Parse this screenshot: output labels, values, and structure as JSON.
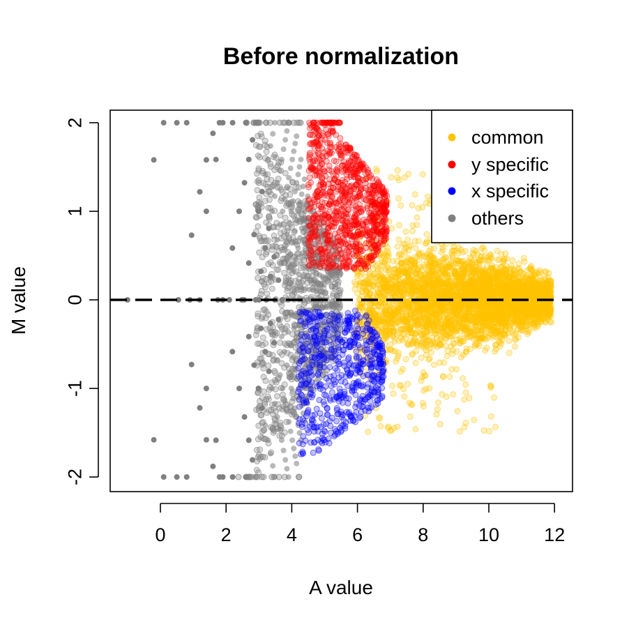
{
  "chart_data": {
    "type": "scatter",
    "title": "Before normalization",
    "xlabel": "A value",
    "ylabel": "M value",
    "xlim": [
      -1.5,
      12.5
    ],
    "ylim": [
      -2.15,
      2.15
    ],
    "xticks": [
      0,
      2,
      4,
      6,
      8,
      10,
      12
    ],
    "yticks": [
      -2,
      -1,
      0,
      1,
      2
    ],
    "xtick_labels": [
      "0",
      "2",
      "4",
      "6",
      "8",
      "10",
      "12"
    ],
    "ytick_labels": [
      "-2",
      "-1",
      "0",
      "1",
      "2"
    ],
    "reference_line": {
      "y": 0,
      "style": "dashed",
      "color": "#000000"
    },
    "legend": {
      "position": "top-right",
      "entries": [
        {
          "label": "common",
          "color": "#FFC300"
        },
        {
          "label": "y specific",
          "color": "#FF0000"
        },
        {
          "label": "x specific",
          "color": "#0000FF"
        },
        {
          "label": "others",
          "color": "#808080"
        }
      ]
    },
    "series": [
      {
        "name": "others",
        "color": "#808080",
        "points": [
          [
            -1.0,
            0
          ],
          [
            0.1,
            2
          ],
          [
            0.1,
            -2
          ],
          [
            -0.2,
            1.58
          ],
          [
            -0.2,
            -1.58
          ],
          [
            0.95,
            0.73
          ],
          [
            0.95,
            -0.73
          ],
          [
            1.2,
            1.22
          ],
          [
            1.2,
            -1.22
          ],
          [
            1.4,
            1.58
          ],
          [
            1.4,
            -1.58
          ],
          [
            1.6,
            1.88
          ],
          [
            1.6,
            -1.88
          ],
          [
            0.55,
            0
          ],
          [
            1.2,
            0
          ],
          [
            1.75,
            0
          ],
          [
            2.1,
            0
          ],
          [
            2.55,
            0
          ],
          [
            3.0,
            0
          ],
          [
            0.5,
            2
          ],
          [
            0.8,
            2
          ],
          [
            1.8,
            2
          ],
          [
            2.2,
            2
          ],
          [
            2.6,
            2
          ],
          [
            0.5,
            -2
          ],
          [
            0.8,
            -2
          ],
          [
            1.8,
            -2
          ],
          [
            2.2,
            -2
          ],
          [
            2.6,
            -2
          ]
        ]
      },
      {
        "name": "common",
        "color": "#FFC300",
        "region": "A 5.8-12, M -1.6 to 1.7, centered near M=0"
      },
      {
        "name": "y specific",
        "color": "#FF0000",
        "region": "A 4.5-7, M 0.3-2"
      },
      {
        "name": "x specific",
        "color": "#0000FF",
        "region": "A 4.2-7, M -1.7 to -0.1"
      }
    ]
  }
}
